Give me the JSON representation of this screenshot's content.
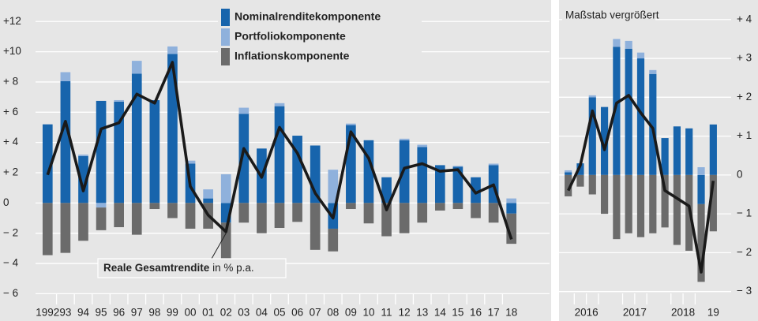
{
  "chart_data": [
    {
      "type": "bar",
      "categories": [
        "1992",
        "93",
        "94",
        "95",
        "96",
        "97",
        "98",
        "99",
        "00",
        "01",
        "02",
        "03",
        "04",
        "05",
        "06",
        "07",
        "08",
        "09",
        "10",
        "11",
        "12",
        "13",
        "14",
        "15",
        "16",
        "17",
        "18"
      ],
      "series": [
        {
          "name": "Nominalrenditekomponente",
          "color": "#1764ac",
          "values": [
            5.2,
            8.05,
            3.1,
            6.75,
            6.7,
            8.55,
            6.8,
            9.85,
            2.6,
            0.3,
            -1.3,
            5.9,
            3.6,
            6.4,
            4.45,
            3.8,
            -1.7,
            5.15,
            4.15,
            1.7,
            4.15,
            3.7,
            2.5,
            2.4,
            1.7,
            2.5,
            -0.7
          ]
        },
        {
          "name": "Portfoliokomponente",
          "color": "#8fb1dc",
          "values": [
            0,
            0.6,
            0.1,
            -0.3,
            0.1,
            0.85,
            0,
            0.5,
            0.2,
            0.6,
            1.9,
            0.4,
            0,
            0.2,
            0,
            0,
            2.2,
            0.1,
            0,
            0,
            0.1,
            0.15,
            0,
            0.05,
            0,
            0.1,
            0.3
          ]
        },
        {
          "name": "Inflationskomponente",
          "color": "#6b6b6b",
          "values": [
            -3.45,
            -3.3,
            -2.5,
            -1.5,
            -1.6,
            -2.1,
            -0.4,
            -1.0,
            -1.7,
            -1.7,
            -2.5,
            -1.3,
            -2.0,
            -1.65,
            -1.25,
            -3.1,
            -1.5,
            -0.4,
            -1.35,
            -2.2,
            -2.0,
            -1.3,
            -0.5,
            -0.4,
            -1.0,
            -1.3,
            -2.0
          ]
        },
        {
          "type": "line",
          "color": "#1a1a1a",
          "values": [
            1.86,
            5.4,
            0.8,
            4.9,
            5.3,
            7.2,
            6.6,
            9.3,
            1.1,
            -0.8,
            -1.9,
            3.6,
            1.7,
            5.0,
            3.3,
            0.65,
            -1.0,
            4.7,
            2.95,
            -0.45,
            2.3,
            2.6,
            2.1,
            2.2,
            0.65,
            1.2,
            -2.4
          ]
        }
      ],
      "annotation": {
        "bold": "Reale Gesamtrendite",
        "text": " in % p.a."
      },
      "ylim": [
        -6.5,
        12.9
      ],
      "yticks": [
        {
          "value": -6,
          "label": "− 6"
        },
        {
          "value": -4,
          "label": "− 4"
        },
        {
          "value": -2,
          "label": "− 2"
        },
        0,
        {
          "value": 2,
          "label": "+ 2"
        },
        {
          "value": 4,
          "label": "+ 4"
        },
        {
          "value": 6,
          "label": "+ 6"
        },
        {
          "value": 8,
          "label": "+ 8"
        },
        {
          "value": 10,
          "label": "+10"
        },
        {
          "value": 12,
          "label": "+12"
        }
      ],
      "grid": true
    },
    {
      "type": "bar",
      "subtitle": "Maßstab vergrößert",
      "categories": [
        "2016",
        null,
        null,
        null,
        "2017",
        null,
        null,
        null,
        "2018",
        null,
        null,
        null,
        "19"
      ],
      "series": [
        {
          "color": "#1764ac",
          "values": [
            0.07,
            0.3,
            2.0,
            1.75,
            3.3,
            3.25,
            3.0,
            2.6,
            0.95,
            1.25,
            1.2,
            -0.75,
            1.3
          ]
        },
        {
          "color": "#8fb1dc",
          "values": [
            0.05,
            0,
            0.05,
            0,
            0.2,
            0.2,
            0.15,
            0.1,
            0,
            0,
            0,
            0.2,
            0
          ]
        },
        {
          "color": "#6b6b6b",
          "values": [
            -0.55,
            -0.3,
            -0.5,
            -1.0,
            -1.65,
            -1.5,
            -1.6,
            -1.5,
            -1.35,
            -1.8,
            -1.95,
            -2.0,
            -1.45
          ]
        },
        {
          "type": "line",
          "color": "#1a1a1a",
          "values": [
            -0.4,
            0.25,
            1.65,
            0.65,
            1.85,
            2.05,
            1.6,
            1.2,
            -0.4,
            -0.6,
            -0.8,
            -2.5,
            -0.15
          ]
        }
      ],
      "ylim": [
        -3.25,
        4.3
      ],
      "yticks": [
        {
          "value": -3,
          "label": "− 3"
        },
        {
          "value": -2,
          "label": "− 2"
        },
        {
          "value": -1,
          "label": "− 1"
        },
        0,
        {
          "value": 1,
          "label": "+ 1"
        },
        {
          "value": 2,
          "label": "+ 2"
        },
        {
          "value": 3,
          "label": "+ 3"
        },
        {
          "value": 4,
          "label": "+ 4"
        }
      ],
      "grid": true
    }
  ]
}
